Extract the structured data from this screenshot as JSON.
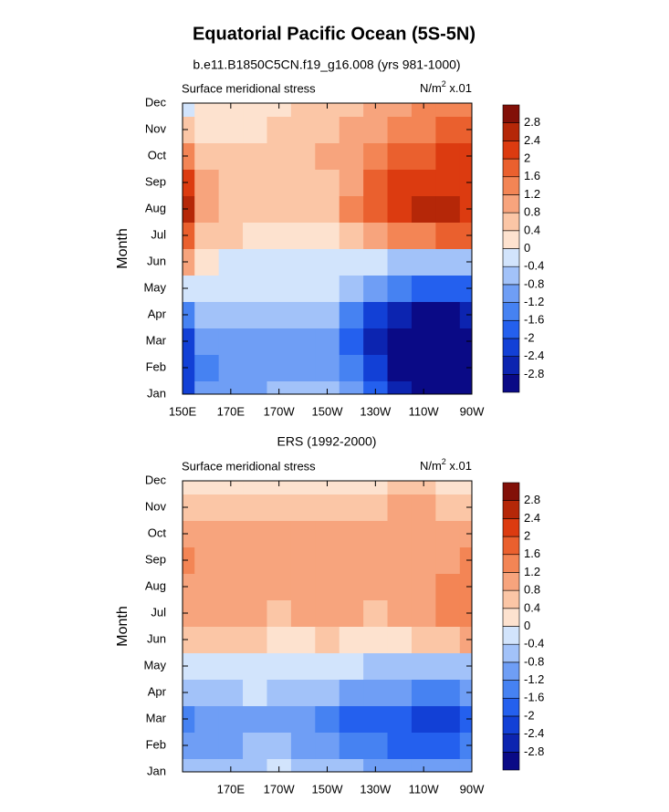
{
  "title": "Equatorial Pacific Ocean (5S-5N)",
  "chart_data": [
    {
      "type": "contour",
      "title": "b.e11.B1850C5CN.f19_g16.008 (yrs 981-1000)",
      "left_label": "Surface meridional stress",
      "units": {
        "base": "N/m",
        "sup": "2",
        "rest": " x.01"
      },
      "ylabel": "Month",
      "y": [
        "Jan",
        "Feb",
        "Mar",
        "Apr",
        "May",
        "Jun",
        "Jul",
        "Aug",
        "Sep",
        "Oct",
        "Nov",
        "Dec"
      ],
      "x": [
        150,
        160,
        170,
        180,
        190,
        200,
        210,
        220,
        230,
        240,
        250,
        260,
        270
      ],
      "xlim": [
        150,
        270
      ],
      "xticks": [
        {
          "value": 150,
          "label": "150E"
        },
        {
          "value": 170,
          "label": "170E"
        },
        {
          "value": 190,
          "label": "170W"
        },
        {
          "value": 210,
          "label": "150W"
        },
        {
          "value": 230,
          "label": "130W"
        },
        {
          "value": 250,
          "label": "110W"
        },
        {
          "value": 270,
          "label": "90W"
        }
      ],
      "levels": [
        -2.8,
        -2.4,
        -2,
        -1.6,
        -1.2,
        -0.8,
        -0.4,
        0,
        0.4,
        0.8,
        1.2,
        1.6,
        2,
        2.4,
        2.8
      ],
      "colors": [
        "#0a0a86",
        "#0c24b0",
        "#1240d6",
        "#2460ee",
        "#4682f2",
        "#6f9ef5",
        "#a2c2f9",
        "#d2e4fc",
        "#fde2cf",
        "#fbc6a6",
        "#f7a47d",
        "#f38555",
        "#ea602e",
        "#dc3b10",
        "#b52708",
        "#821008"
      ],
      "z": [
        [
          -2.2,
          -1.2,
          -0.9,
          -0.9,
          -0.7,
          -0.6,
          -0.7,
          -1.2,
          -2,
          -2.6,
          -3,
          -3,
          -3
        ],
        [
          -2.4,
          -1.4,
          -0.9,
          -0.9,
          -0.9,
          -0.9,
          -1,
          -1.6,
          -2.3,
          -2.9,
          -3,
          -3,
          -3
        ],
        [
          -2.2,
          -1.2,
          -0.9,
          -0.9,
          -0.9,
          -0.9,
          -1,
          -1.8,
          -2.6,
          -3,
          -3,
          -3,
          -3
        ],
        [
          -1.6,
          -0.8,
          -0.6,
          -0.6,
          -0.6,
          -0.5,
          -0.5,
          -1.4,
          -2.2,
          -2.8,
          -2.9,
          -2.9,
          -2.8
        ],
        [
          -0.2,
          -0.3,
          -0.3,
          -0.3,
          -0.3,
          -0.2,
          -0.3,
          -0.6,
          -1.1,
          -1.5,
          -1.7,
          -1.7,
          -1.7
        ],
        [
          0.8,
          0.2,
          -0.1,
          -0.2,
          -0.2,
          -0.2,
          -0.3,
          -0.3,
          -0.4,
          -0.5,
          -0.6,
          -0.6,
          -0.6
        ],
        [
          1.6,
          0.6,
          0.4,
          0.3,
          0.3,
          0.2,
          0.2,
          0.4,
          0.8,
          1.2,
          1.5,
          1.6,
          1.6
        ],
        [
          2.4,
          0.8,
          0.5,
          0.5,
          0.5,
          0.5,
          0.6,
          1.2,
          1.8,
          2.3,
          2.5,
          2.5,
          2.2
        ],
        [
          2,
          0.8,
          0.6,
          0.6,
          0.6,
          0.6,
          0.7,
          1,
          1.6,
          2.1,
          2.3,
          2.3,
          2.2
        ],
        [
          1.2,
          0.6,
          0.6,
          0.6,
          0.6,
          0.7,
          0.8,
          1,
          1.3,
          1.6,
          1.9,
          2.1,
          2.1
        ],
        [
          0.4,
          0.3,
          0.3,
          0.3,
          0.4,
          0.5,
          0.6,
          0.8,
          1,
          1.3,
          1.5,
          1.6,
          1.6
        ],
        [
          -0.4,
          0.1,
          0.2,
          0.2,
          0.3,
          0.4,
          0.5,
          0.6,
          0.8,
          1,
          1.2,
          1.3,
          1.3
        ]
      ]
    },
    {
      "type": "contour",
      "title": "ERS (1992-2000)",
      "left_label": "Surface meridional stress",
      "units": {
        "base": "N/m",
        "sup": "2",
        "rest": " x.01"
      },
      "ylabel": "Month",
      "y": [
        "Jan",
        "Feb",
        "Mar",
        "Apr",
        "May",
        "Jun",
        "Jul",
        "Aug",
        "Sep",
        "Oct",
        "Nov",
        "Dec"
      ],
      "x": [
        150,
        160,
        170,
        180,
        190,
        200,
        210,
        220,
        230,
        240,
        250,
        260,
        270
      ],
      "xlim": [
        150,
        270
      ],
      "xticks": [
        {
          "value": 170,
          "label": "170E"
        },
        {
          "value": 190,
          "label": "170W"
        },
        {
          "value": 210,
          "label": "150W"
        },
        {
          "value": 230,
          "label": "130W"
        },
        {
          "value": 250,
          "label": "110W"
        },
        {
          "value": 270,
          "label": "90W"
        }
      ],
      "levels": [
        -2.8,
        -2.4,
        -2,
        -1.6,
        -1.2,
        -0.8,
        -0.4,
        0,
        0.4,
        0.8,
        1.2,
        1.6,
        2,
        2.4,
        2.8
      ],
      "colors": [
        "#0a0a86",
        "#0c24b0",
        "#1240d6",
        "#2460ee",
        "#4682f2",
        "#6f9ef5",
        "#a2c2f9",
        "#d2e4fc",
        "#fde2cf",
        "#fbc6a6",
        "#f7a47d",
        "#f38555",
        "#ea602e",
        "#dc3b10",
        "#b52708",
        "#821008"
      ],
      "z": [
        [
          -0.6,
          -0.7,
          -0.8,
          -0.6,
          -0.4,
          -0.5,
          -0.6,
          -0.8,
          -1,
          -1,
          -1.1,
          -1.2,
          -1
        ],
        [
          -1.2,
          -0.9,
          -0.9,
          -0.8,
          -0.8,
          -0.9,
          -1.1,
          -1.3,
          -1.6,
          -1.7,
          -1.9,
          -1.8,
          -1.5
        ],
        [
          -1.6,
          -1.1,
          -1,
          -0.9,
          -0.9,
          -1.1,
          -1.3,
          -1.7,
          -1.8,
          -2,
          -2.1,
          -2.1,
          -1.8
        ],
        [
          -0.6,
          -0.5,
          -0.5,
          -0.4,
          -0.5,
          -0.6,
          -0.6,
          -1,
          -1.2,
          -1.2,
          -1.3,
          -1.3,
          -1.2
        ],
        [
          -0.2,
          -0.1,
          -0.1,
          -0.1,
          -0.2,
          -0.3,
          -0.3,
          -0.4,
          -0.5,
          -0.5,
          -0.6,
          -0.6,
          -0.5
        ],
        [
          0.6,
          0.5,
          0.4,
          0.4,
          0.3,
          0.3,
          0.4,
          0.3,
          0.2,
          0.3,
          0.4,
          0.6,
          0.8
        ],
        [
          0.9,
          0.8,
          0.8,
          0.8,
          0.7,
          0.8,
          0.8,
          0.8,
          0.7,
          0.9,
          1.1,
          1.3,
          1.3
        ],
        [
          1.1,
          0.9,
          0.9,
          0.9,
          0.9,
          1,
          1,
          0.9,
          0.9,
          0.9,
          1,
          1.2,
          1.3
        ],
        [
          1.2,
          0.9,
          0.8,
          0.8,
          0.9,
          1,
          1,
          1,
          0.9,
          0.8,
          0.9,
          1,
          1.2
        ],
        [
          0.9,
          0.8,
          0.9,
          0.9,
          0.9,
          0.9,
          1,
          1,
          0.8,
          0.9,
          0.9,
          0.9,
          1
        ],
        [
          0.5,
          0.4,
          0.5,
          0.5,
          0.5,
          0.5,
          0.6,
          0.6,
          0.6,
          0.8,
          0.8,
          0.6,
          0.7
        ],
        [
          0.1,
          0,
          0.1,
          0.2,
          0.2,
          0.2,
          0.2,
          0.2,
          0.2,
          0.4,
          0.4,
          0.2,
          0.2
        ]
      ]
    }
  ]
}
